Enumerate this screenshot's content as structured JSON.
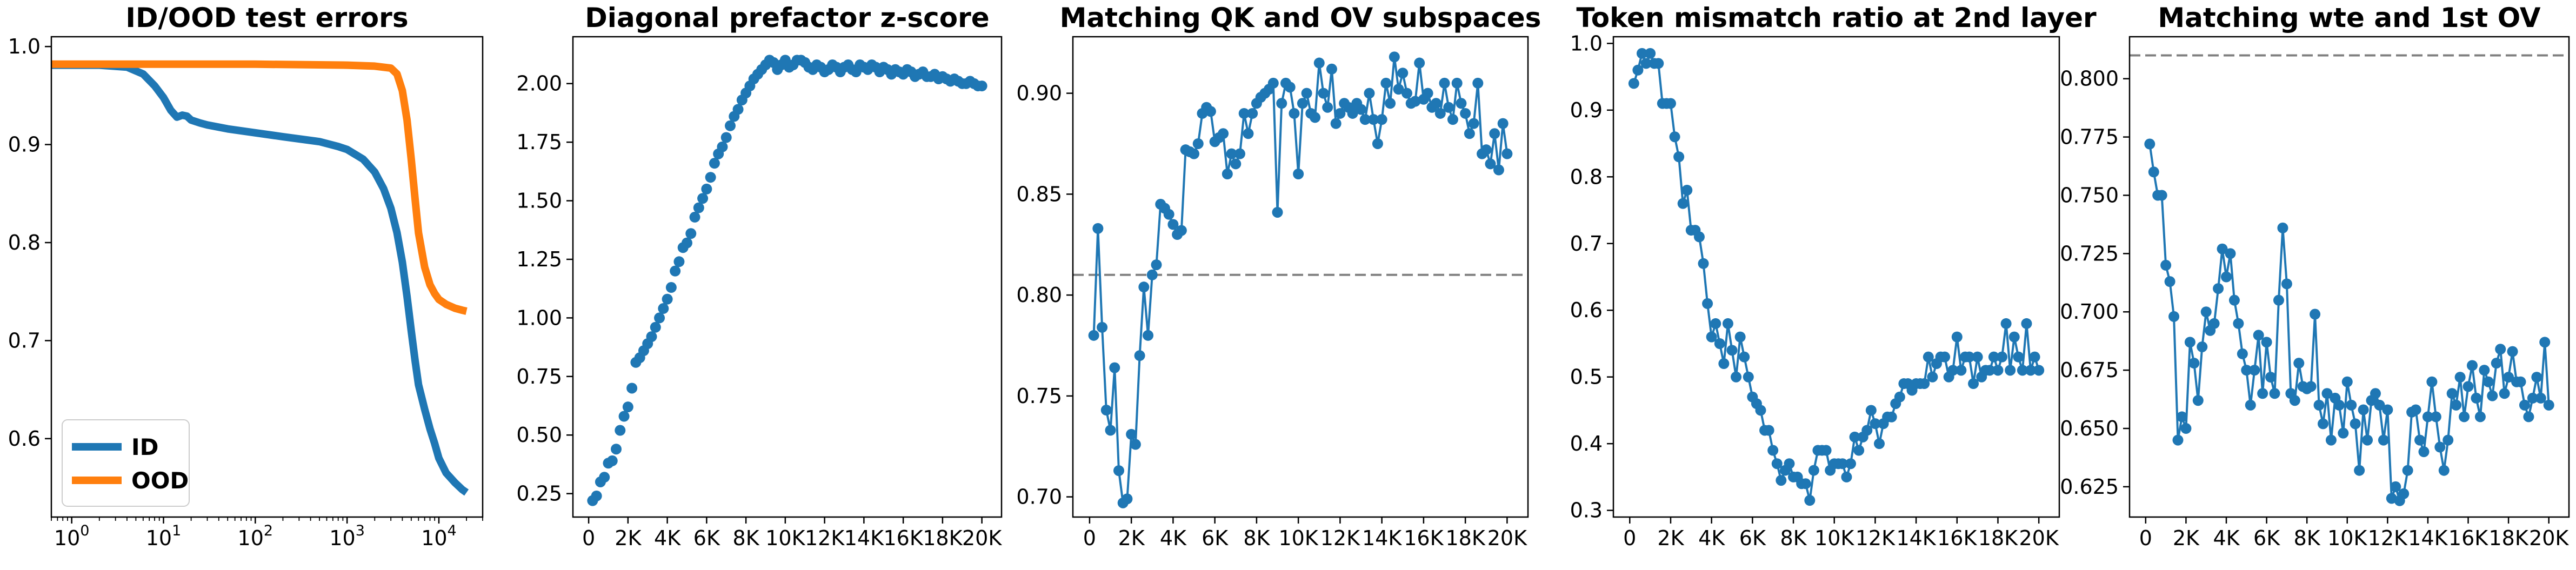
{
  "figure": {
    "background": "#ffffff",
    "marker_color": "#1f77b4",
    "refline_color": "#808080"
  },
  "chart_data": [
    {
      "type": "line",
      "title": "ID/OOD test errors",
      "xscale": "log",
      "xlim": [
        0.6,
        30000
      ],
      "ylim": [
        0.52,
        1.01
      ],
      "yticks": [
        0.6,
        0.7,
        0.8,
        0.9,
        1.0
      ],
      "ytick_labels": [
        "0.6",
        "0.7",
        "0.8",
        "0.9",
        "1.0"
      ],
      "xticks": [
        1,
        10,
        100,
        1000,
        10000
      ],
      "xtick_labels": [
        {
          "base": "10",
          "exp": "0"
        },
        {
          "base": "10",
          "exp": "1"
        },
        {
          "base": "10",
          "exp": "2"
        },
        {
          "base": "10",
          "exp": "3"
        },
        {
          "base": "10",
          "exp": "4"
        }
      ],
      "legend": "lower-left",
      "series": [
        {
          "name": "ID",
          "color": "#1f77b4",
          "x": [
            0.6,
            1,
            2,
            4,
            6,
            8,
            10,
            12,
            14,
            16,
            18,
            20,
            25,
            30,
            50,
            100,
            200,
            500,
            800,
            1000,
            1500,
            2000,
            2500,
            3000,
            3500,
            4000,
            4500,
            5000,
            5500,
            6000,
            7000,
            8000,
            9000,
            10000,
            12000,
            15000,
            18000,
            20000
          ],
          "y": [
            0.981,
            0.981,
            0.981,
            0.979,
            0.972,
            0.96,
            0.948,
            0.935,
            0.928,
            0.93,
            0.929,
            0.925,
            0.922,
            0.92,
            0.916,
            0.912,
            0.908,
            0.903,
            0.898,
            0.895,
            0.885,
            0.872,
            0.855,
            0.835,
            0.81,
            0.78,
            0.745,
            0.71,
            0.68,
            0.655,
            0.63,
            0.61,
            0.595,
            0.58,
            0.565,
            0.555,
            0.548,
            0.545
          ]
        },
        {
          "name": "OOD",
          "color": "#ff7f0e",
          "x": [
            0.6,
            1,
            10,
            100,
            1000,
            2000,
            3000,
            3500,
            4000,
            4500,
            5000,
            5500,
            6000,
            7000,
            8000,
            9000,
            10000,
            12000,
            15000,
            18000,
            20000
          ],
          "y": [
            0.982,
            0.982,
            0.982,
            0.982,
            0.981,
            0.98,
            0.978,
            0.972,
            0.955,
            0.925,
            0.885,
            0.845,
            0.81,
            0.775,
            0.757,
            0.748,
            0.742,
            0.737,
            0.733,
            0.731,
            0.73
          ]
        }
      ]
    },
    {
      "type": "scatter",
      "title": "Diagonal prefactor z-score",
      "xlim": [
        -800,
        21000
      ],
      "ylim": [
        0.15,
        2.2
      ],
      "yticks": [
        0.25,
        0.5,
        0.75,
        1.0,
        1.25,
        1.5,
        1.75,
        2.0
      ],
      "ytick_labels": [
        "0.25",
        "0.50",
        "0.75",
        "1.00",
        "1.25",
        "1.50",
        "1.75",
        "2.00"
      ],
      "xticks": [
        0,
        2000,
        4000,
        6000,
        8000,
        10000,
        12000,
        14000,
        16000,
        18000,
        20000
      ],
      "xtick_labels": [
        "0",
        "2K",
        "4K",
        "6K",
        "8K",
        "10K",
        "12K",
        "14K",
        "16K",
        "18K",
        "20K"
      ],
      "connected": false,
      "x": [
        200,
        400,
        600,
        800,
        1000,
        1200,
        1400,
        1600,
        1800,
        2000,
        2200,
        2400,
        2600,
        2800,
        3000,
        3200,
        3400,
        3600,
        3800,
        4000,
        4200,
        4400,
        4600,
        4800,
        5000,
        5200,
        5400,
        5600,
        5800,
        6000,
        6200,
        6400,
        6600,
        6800,
        7000,
        7200,
        7400,
        7600,
        7800,
        8000,
        8200,
        8400,
        8600,
        8800,
        9000,
        9200,
        9400,
        9600,
        9800,
        10000,
        10200,
        10400,
        10600,
        10800,
        11000,
        11200,
        11400,
        11600,
        11800,
        12000,
        12200,
        12400,
        12600,
        12800,
        13000,
        13200,
        13400,
        13600,
        13800,
        14000,
        14200,
        14400,
        14600,
        14800,
        15000,
        15200,
        15400,
        15600,
        15800,
        16000,
        16200,
        16400,
        16600,
        16800,
        17000,
        17200,
        17400,
        17600,
        17800,
        18000,
        18200,
        18400,
        18600,
        18800,
        19000,
        19200,
        19400,
        19600,
        19800,
        20000
      ],
      "y": [
        0.22,
        0.24,
        0.3,
        0.32,
        0.38,
        0.39,
        0.44,
        0.52,
        0.58,
        0.62,
        0.7,
        0.81,
        0.83,
        0.86,
        0.89,
        0.92,
        0.96,
        1.0,
        1.04,
        1.08,
        1.13,
        1.2,
        1.24,
        1.3,
        1.32,
        1.36,
        1.43,
        1.47,
        1.51,
        1.55,
        1.6,
        1.66,
        1.7,
        1.73,
        1.77,
        1.82,
        1.86,
        1.89,
        1.93,
        1.96,
        1.99,
        2.02,
        2.04,
        2.06,
        2.08,
        2.1,
        2.09,
        2.06,
        2.08,
        2.1,
        2.07,
        2.08,
        2.1,
        2.1,
        2.09,
        2.07,
        2.06,
        2.08,
        2.07,
        2.05,
        2.06,
        2.08,
        2.07,
        2.05,
        2.07,
        2.08,
        2.06,
        2.05,
        2.08,
        2.07,
        2.06,
        2.08,
        2.07,
        2.05,
        2.07,
        2.06,
        2.04,
        2.06,
        2.05,
        2.04,
        2.06,
        2.05,
        2.03,
        2.04,
        2.05,
        2.03,
        2.03,
        2.04,
        2.02,
        2.03,
        2.02,
        2.01,
        2.02,
        2.01,
        2.0,
        2.0,
        2.01,
        2.0,
        1.99,
        1.99
      ]
    },
    {
      "type": "line",
      "title": "Matching QK and OV subspaces",
      "xlim": [
        -800,
        21000
      ],
      "ylim": [
        0.69,
        0.928
      ],
      "yticks": [
        0.7,
        0.75,
        0.8,
        0.85,
        0.9
      ],
      "ytick_labels": [
        "0.70",
        "0.75",
        "0.80",
        "0.85",
        "0.90"
      ],
      "xticks": [
        0,
        2000,
        4000,
        6000,
        8000,
        10000,
        12000,
        14000,
        16000,
        18000,
        20000
      ],
      "xtick_labels": [
        "0",
        "2K",
        "4K",
        "6K",
        "8K",
        "10K",
        "12K",
        "14K",
        "16K",
        "18K",
        "20K"
      ],
      "markers": true,
      "reference_line": 0.81,
      "x": [
        200,
        400,
        600,
        800,
        1000,
        1200,
        1400,
        1600,
        1800,
        2000,
        2200,
        2400,
        2600,
        2800,
        3000,
        3200,
        3400,
        3600,
        3800,
        4000,
        4200,
        4400,
        4600,
        4800,
        5000,
        5200,
        5400,
        5600,
        5800,
        6000,
        6200,
        6400,
        6600,
        6800,
        7000,
        7200,
        7400,
        7600,
        7800,
        8000,
        8200,
        8400,
        8600,
        8800,
        9000,
        9200,
        9400,
        9600,
        9800,
        10000,
        10200,
        10400,
        10600,
        10800,
        11000,
        11200,
        11400,
        11600,
        11800,
        12000,
        12200,
        12400,
        12600,
        12800,
        13000,
        13200,
        13400,
        13600,
        13800,
        14000,
        14200,
        14400,
        14600,
        14800,
        15000,
        15200,
        15400,
        15600,
        15800,
        16000,
        16200,
        16400,
        16600,
        16800,
        17000,
        17200,
        17400,
        17600,
        17800,
        18000,
        18200,
        18400,
        18600,
        18800,
        19000,
        19200,
        19400,
        19600,
        19800,
        20000
      ],
      "y": [
        0.78,
        0.833,
        0.784,
        0.743,
        0.733,
        0.764,
        0.713,
        0.697,
        0.699,
        0.731,
        0.726,
        0.77,
        0.804,
        0.78,
        0.81,
        0.815,
        0.845,
        0.843,
        0.84,
        0.835,
        0.83,
        0.832,
        0.872,
        0.871,
        0.87,
        0.875,
        0.89,
        0.893,
        0.891,
        0.876,
        0.878,
        0.88,
        0.86,
        0.87,
        0.865,
        0.87,
        0.89,
        0.88,
        0.89,
        0.895,
        0.898,
        0.9,
        0.902,
        0.905,
        0.841,
        0.895,
        0.905,
        0.903,
        0.89,
        0.86,
        0.895,
        0.9,
        0.89,
        0.888,
        0.915,
        0.9,
        0.893,
        0.912,
        0.885,
        0.89,
        0.895,
        0.893,
        0.89,
        0.895,
        0.892,
        0.887,
        0.9,
        0.887,
        0.875,
        0.887,
        0.905,
        0.895,
        0.918,
        0.902,
        0.91,
        0.9,
        0.895,
        0.896,
        0.915,
        0.897,
        0.9,
        0.893,
        0.895,
        0.89,
        0.905,
        0.893,
        0.887,
        0.905,
        0.895,
        0.89,
        0.88,
        0.885,
        0.905,
        0.87,
        0.872,
        0.865,
        0.88,
        0.862,
        0.885,
        0.87
      ]
    },
    {
      "type": "line",
      "title": "Token mismatch ratio at 2nd layer",
      "xlim": [
        -800,
        21000
      ],
      "ylim": [
        0.29,
        1.01
      ],
      "yticks": [
        0.3,
        0.4,
        0.5,
        0.6,
        0.7,
        0.8,
        0.9,
        1.0
      ],
      "ytick_labels": [
        "0.3",
        "0.4",
        "0.5",
        "0.6",
        "0.7",
        "0.8",
        "0.9",
        "1.0"
      ],
      "xticks": [
        0,
        2000,
        4000,
        6000,
        8000,
        10000,
        12000,
        14000,
        16000,
        18000,
        20000
      ],
      "xtick_labels": [
        "0",
        "2K",
        "4K",
        "6K",
        "8K",
        "10K",
        "12K",
        "14K",
        "16K",
        "18K",
        "20K"
      ],
      "markers": true,
      "x": [
        200,
        400,
        600,
        800,
        1000,
        1200,
        1400,
        1600,
        1800,
        2000,
        2200,
        2400,
        2600,
        2800,
        3000,
        3200,
        3400,
        3600,
        3800,
        4000,
        4200,
        4400,
        4600,
        4800,
        5000,
        5200,
        5400,
        5600,
        5800,
        6000,
        6200,
        6400,
        6600,
        6800,
        7000,
        7200,
        7400,
        7600,
        7800,
        8000,
        8200,
        8400,
        8600,
        8800,
        9000,
        9200,
        9400,
        9600,
        9800,
        10000,
        10200,
        10400,
        10600,
        10800,
        11000,
        11200,
        11400,
        11600,
        11800,
        12000,
        12200,
        12400,
        12600,
        12800,
        13000,
        13200,
        13400,
        13600,
        13800,
        14000,
        14200,
        14400,
        14600,
        14800,
        15000,
        15200,
        15400,
        15600,
        15800,
        16000,
        16200,
        16400,
        16600,
        16800,
        17000,
        17200,
        17400,
        17600,
        17800,
        18000,
        18200,
        18400,
        18600,
        18800,
        19000,
        19200,
        19400,
        19600,
        19800,
        20000
      ],
      "y": [
        0.94,
        0.96,
        0.985,
        0.97,
        0.985,
        0.97,
        0.97,
        0.91,
        0.91,
        0.91,
        0.86,
        0.83,
        0.76,
        0.78,
        0.72,
        0.72,
        0.71,
        0.67,
        0.61,
        0.56,
        0.58,
        0.55,
        0.52,
        0.58,
        0.54,
        0.5,
        0.56,
        0.53,
        0.5,
        0.47,
        0.46,
        0.45,
        0.42,
        0.42,
        0.39,
        0.37,
        0.345,
        0.36,
        0.37,
        0.35,
        0.35,
        0.34,
        0.34,
        0.315,
        0.36,
        0.39,
        0.39,
        0.39,
        0.36,
        0.37,
        0.37,
        0.37,
        0.35,
        0.37,
        0.41,
        0.39,
        0.41,
        0.42,
        0.45,
        0.43,
        0.4,
        0.43,
        0.44,
        0.44,
        0.46,
        0.47,
        0.49,
        0.49,
        0.48,
        0.49,
        0.49,
        0.49,
        0.53,
        0.5,
        0.52,
        0.53,
        0.53,
        0.5,
        0.51,
        0.56,
        0.51,
        0.53,
        0.53,
        0.49,
        0.53,
        0.5,
        0.51,
        0.51,
        0.53,
        0.51,
        0.53,
        0.58,
        0.51,
        0.56,
        0.53,
        0.51,
        0.58,
        0.51,
        0.53,
        0.51
      ]
    },
    {
      "type": "line",
      "title": "Matching wte and 1st OV",
      "xlim": [
        -800,
        21000
      ],
      "ylim": [
        0.612,
        0.818
      ],
      "yticks": [
        0.625,
        0.65,
        0.675,
        0.7,
        0.725,
        0.75,
        0.775,
        0.8
      ],
      "ytick_labels": [
        "0.625",
        "0.650",
        "0.675",
        "0.700",
        "0.725",
        "0.750",
        "0.775",
        "0.800"
      ],
      "xticks": [
        0,
        2000,
        4000,
        6000,
        8000,
        10000,
        12000,
        14000,
        16000,
        18000,
        20000
      ],
      "xtick_labels": [
        "0",
        "2K",
        "4K",
        "6K",
        "8K",
        "10K",
        "12K",
        "14K",
        "16K",
        "18K",
        "20K"
      ],
      "markers": true,
      "reference_line": 0.81,
      "x": [
        200,
        400,
        600,
        800,
        1000,
        1200,
        1400,
        1600,
        1800,
        2000,
        2200,
        2400,
        2600,
        2800,
        3000,
        3200,
        3400,
        3600,
        3800,
        4000,
        4200,
        4400,
        4600,
        4800,
        5000,
        5200,
        5400,
        5600,
        5800,
        6000,
        6200,
        6400,
        6600,
        6800,
        7000,
        7200,
        7400,
        7600,
        7800,
        8000,
        8200,
        8400,
        8600,
        8800,
        9000,
        9200,
        9400,
        9600,
        9800,
        10000,
        10200,
        10400,
        10600,
        10800,
        11000,
        11200,
        11400,
        11600,
        11800,
        12000,
        12200,
        12400,
        12600,
        12800,
        13000,
        13200,
        13400,
        13600,
        13800,
        14000,
        14200,
        14400,
        14600,
        14800,
        15000,
        15200,
        15400,
        15600,
        15800,
        16000,
        16200,
        16400,
        16600,
        16800,
        17000,
        17200,
        17400,
        17600,
        17800,
        18000,
        18200,
        18400,
        18600,
        18800,
        19000,
        19200,
        19400,
        19600,
        19800,
        20000
      ],
      "y": [
        0.772,
        0.76,
        0.75,
        0.75,
        0.72,
        0.713,
        0.698,
        0.645,
        0.655,
        0.65,
        0.687,
        0.678,
        0.662,
        0.685,
        0.7,
        0.692,
        0.695,
        0.71,
        0.727,
        0.715,
        0.725,
        0.705,
        0.695,
        0.682,
        0.675,
        0.66,
        0.675,
        0.69,
        0.665,
        0.687,
        0.672,
        0.665,
        0.705,
        0.736,
        0.712,
        0.665,
        0.662,
        0.678,
        0.668,
        0.667,
        0.668,
        0.699,
        0.66,
        0.652,
        0.665,
        0.645,
        0.663,
        0.66,
        0.648,
        0.67,
        0.66,
        0.652,
        0.632,
        0.658,
        0.645,
        0.662,
        0.665,
        0.66,
        0.645,
        0.658,
        0.62,
        0.625,
        0.619,
        0.622,
        0.632,
        0.657,
        0.658,
        0.645,
        0.64,
        0.655,
        0.67,
        0.655,
        0.642,
        0.632,
        0.645,
        0.665,
        0.66,
        0.672,
        0.655,
        0.668,
        0.677,
        0.663,
        0.655,
        0.675,
        0.67,
        0.664,
        0.678,
        0.684,
        0.665,
        0.672,
        0.683,
        0.67,
        0.67,
        0.66,
        0.655,
        0.663,
        0.672,
        0.663,
        0.687,
        0.66
      ]
    }
  ]
}
